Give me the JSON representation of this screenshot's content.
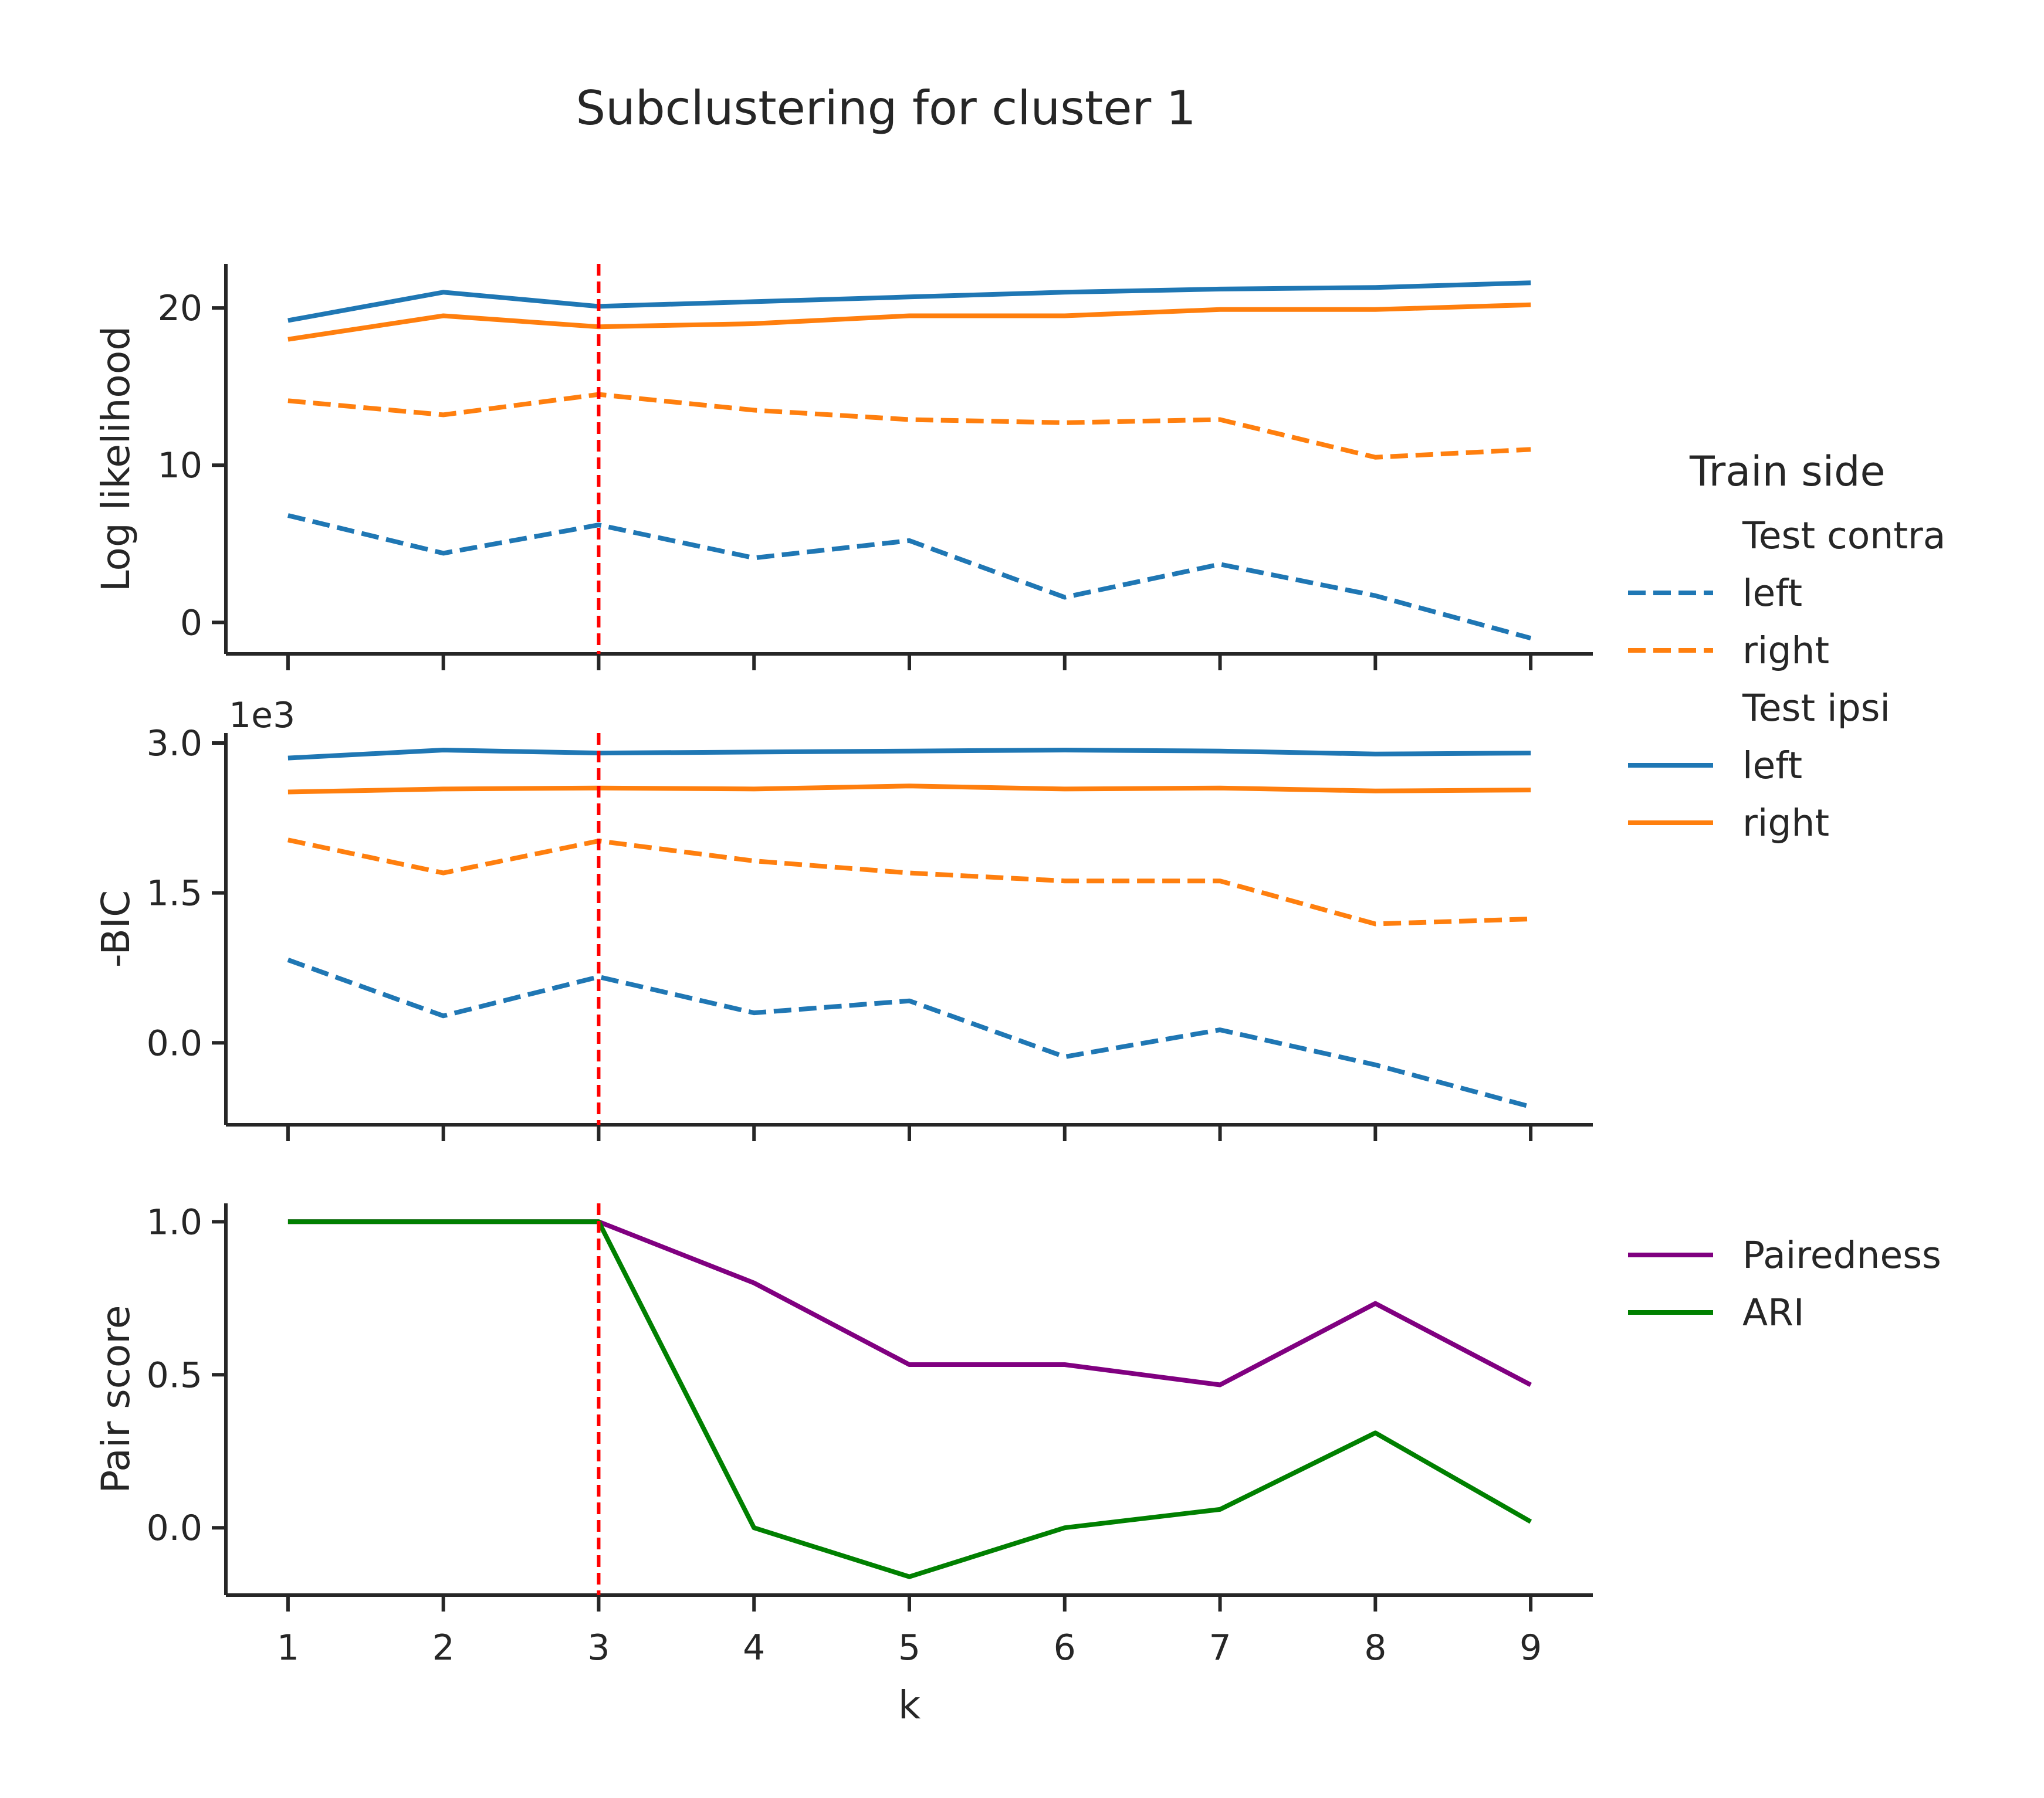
{
  "title": "Subclustering for cluster 1",
  "colors": {
    "blue": "#1f77b4",
    "orange": "#ff7f0e",
    "purple": "#800080",
    "green": "#008000",
    "k_marker": "#ff0000",
    "axis": "#262626"
  },
  "legend_top": {
    "title": "Train side",
    "groups": [
      {
        "header": "Test contra",
        "entries": [
          {
            "label": "left",
            "color": "blue",
            "style": "dashed"
          },
          {
            "label": "right",
            "color": "orange",
            "style": "dashed"
          }
        ]
      },
      {
        "header": "Test ipsi",
        "entries": [
          {
            "label": "left",
            "color": "blue",
            "style": "solid"
          },
          {
            "label": "right",
            "color": "orange",
            "style": "solid"
          }
        ]
      }
    ]
  },
  "legend_bottom": {
    "entries": [
      {
        "label": "Pairedness",
        "color": "purple",
        "style": "solid"
      },
      {
        "label": "ARI",
        "color": "green",
        "style": "solid"
      }
    ]
  },
  "chart_data": [
    {
      "type": "line",
      "ylabel": "Log likelihood",
      "ylim": [
        -2,
        22.8
      ],
      "yticks": [
        0,
        10,
        20
      ],
      "ytick_labels": [
        "0",
        "10",
        "20"
      ],
      "x": [
        1,
        2,
        3,
        4,
        5,
        6,
        7,
        8,
        9
      ],
      "xlim": [
        0.6,
        9.4
      ],
      "xticks_labeled": false,
      "vline_x": 3,
      "series": [
        {
          "group": "Test ipsi",
          "name": "left",
          "color": "blue",
          "style": "solid",
          "values": [
            19.2,
            21.0,
            20.1,
            20.4,
            20.7,
            21.0,
            21.2,
            21.3,
            21.6
          ]
        },
        {
          "group": "Test ipsi",
          "name": "right",
          "color": "orange",
          "style": "solid",
          "values": [
            18.0,
            19.5,
            18.8,
            19.0,
            19.5,
            19.5,
            19.9,
            19.9,
            20.2
          ]
        },
        {
          "group": "Test contra",
          "name": "right",
          "color": "orange",
          "style": "dashed",
          "values": [
            14.1,
            13.2,
            14.5,
            13.5,
            12.9,
            12.7,
            12.9,
            10.5,
            11.0
          ]
        },
        {
          "group": "Test contra",
          "name": "left",
          "color": "blue",
          "style": "dashed",
          "values": [
            6.8,
            4.4,
            6.2,
            4.1,
            5.2,
            1.6,
            3.7,
            1.7,
            -1.0
          ]
        }
      ]
    },
    {
      "type": "line",
      "ylabel": "-BIC",
      "offset_label": "1e3",
      "ylim": [
        -0.82,
        3.1
      ],
      "yticks": [
        0.0,
        1.5,
        3.0
      ],
      "ytick_labels": [
        "0.0",
        "1.5",
        "3.0"
      ],
      "x": [
        1,
        2,
        3,
        4,
        5,
        6,
        7,
        8,
        9
      ],
      "xlim": [
        0.6,
        9.4
      ],
      "xticks_labeled": false,
      "vline_x": 3,
      "series": [
        {
          "group": "Test ipsi",
          "name": "left",
          "color": "blue",
          "style": "solid",
          "values": [
            2.85,
            2.93,
            2.9,
            2.91,
            2.92,
            2.93,
            2.92,
            2.89,
            2.9
          ]
        },
        {
          "group": "Test ipsi",
          "name": "right",
          "color": "orange",
          "style": "solid",
          "values": [
            2.51,
            2.54,
            2.55,
            2.54,
            2.57,
            2.54,
            2.55,
            2.52,
            2.53
          ]
        },
        {
          "group": "Test contra",
          "name": "right",
          "color": "orange",
          "style": "dashed",
          "values": [
            2.03,
            1.7,
            2.02,
            1.82,
            1.7,
            1.62,
            1.62,
            1.19,
            1.24
          ]
        },
        {
          "group": "Test contra",
          "name": "left",
          "color": "blue",
          "style": "dashed",
          "values": [
            0.83,
            0.27,
            0.66,
            0.3,
            0.42,
            -0.14,
            0.13,
            -0.22,
            -0.64
          ]
        }
      ]
    },
    {
      "type": "line",
      "ylabel": "Pair score",
      "xlabel": "k",
      "ylim": [
        -0.22,
        1.06
      ],
      "yticks": [
        0.0,
        0.5,
        1.0
      ],
      "ytick_labels": [
        "0.0",
        "0.5",
        "1.0"
      ],
      "x": [
        1,
        2,
        3,
        4,
        5,
        6,
        7,
        8,
        9
      ],
      "xtick_labels": [
        "1",
        "2",
        "3",
        "4",
        "5",
        "6",
        "7",
        "8",
        "9"
      ],
      "xlim": [
        0.6,
        9.4
      ],
      "xticks_labeled": true,
      "vline_x": 3,
      "series": [
        {
          "name": "Pairedness",
          "color": "purple",
          "style": "solid",
          "values": [
            1.0,
            1.0,
            1.0,
            0.8,
            0.533,
            0.533,
            0.467,
            0.733,
            0.467
          ]
        },
        {
          "name": "ARI",
          "color": "green",
          "style": "solid",
          "values": [
            1.0,
            1.0,
            1.0,
            0.0,
            -0.16,
            0.0,
            0.06,
            0.31,
            0.02
          ]
        }
      ]
    }
  ]
}
